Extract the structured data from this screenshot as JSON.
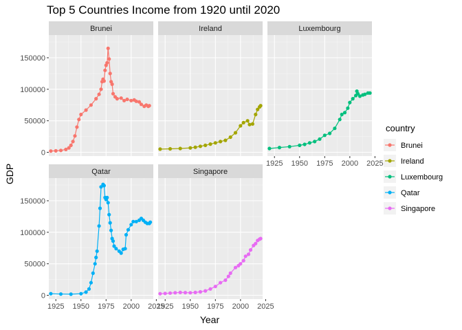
{
  "chart_data": {
    "type": "line",
    "title": "Top 5 Countries Income from 1920 until 2020",
    "xlabel": "Year",
    "ylabel": "GDP",
    "xlim": [
      1918,
      2022
    ],
    "ylim": [
      -6000,
      186000
    ],
    "x_ticks": [
      1925,
      1950,
      1975,
      2000,
      2025
    ],
    "y_ticks": [
      0,
      50000,
      100000,
      150000
    ],
    "y_tick_labels": [
      "0",
      "50000",
      "100000",
      "150000"
    ],
    "legend_title": "country",
    "legend_position": "right",
    "facets": [
      "Brunei",
      "Ireland",
      "Luxembourg",
      "Qatar",
      "Singapore"
    ],
    "series": [
      {
        "name": "Brunei",
        "color": "#F8766D",
        "points": [
          [
            1920,
            2000
          ],
          [
            1925,
            2300
          ],
          [
            1930,
            3000
          ],
          [
            1935,
            4500
          ],
          [
            1938,
            7000
          ],
          [
            1940,
            11000
          ],
          [
            1942,
            17000
          ],
          [
            1944,
            26000
          ],
          [
            1946,
            40000
          ],
          [
            1948,
            52000
          ],
          [
            1950,
            60000
          ],
          [
            1955,
            67000
          ],
          [
            1960,
            75000
          ],
          [
            1965,
            85000
          ],
          [
            1968,
            92000
          ],
          [
            1970,
            100000
          ],
          [
            1971,
            112000
          ],
          [
            1972,
            116000
          ],
          [
            1973,
            113000
          ],
          [
            1974,
            130000
          ],
          [
            1975,
            138000
          ],
          [
            1976,
            142000
          ],
          [
            1977,
            165000
          ],
          [
            1978,
            148000
          ],
          [
            1979,
            125000
          ],
          [
            1980,
            112000
          ],
          [
            1981,
            108000
          ],
          [
            1982,
            93000
          ],
          [
            1984,
            88000
          ],
          [
            1986,
            85000
          ],
          [
            1990,
            86000
          ],
          [
            1993,
            82000
          ],
          [
            1996,
            84000
          ],
          [
            2000,
            82000
          ],
          [
            2003,
            83000
          ],
          [
            2005,
            81000
          ],
          [
            2008,
            80000
          ],
          [
            2010,
            76000
          ],
          [
            2013,
            73000
          ],
          [
            2015,
            75000
          ],
          [
            2017,
            73000
          ],
          [
            2018,
            74000
          ]
        ]
      },
      {
        "name": "Ireland",
        "color": "#A3A500",
        "points": [
          [
            1920,
            5000
          ],
          [
            1930,
            5500
          ],
          [
            1940,
            6000
          ],
          [
            1950,
            7000
          ],
          [
            1955,
            8000
          ],
          [
            1960,
            9500
          ],
          [
            1965,
            11000
          ],
          [
            1970,
            13000
          ],
          [
            1975,
            15000
          ],
          [
            1980,
            17000
          ],
          [
            1985,
            19000
          ],
          [
            1990,
            24000
          ],
          [
            1995,
            31000
          ],
          [
            2000,
            42000
          ],
          [
            2003,
            47000
          ],
          [
            2007,
            50000
          ],
          [
            2009,
            44000
          ],
          [
            2012,
            45000
          ],
          [
            2015,
            60000
          ],
          [
            2017,
            68000
          ],
          [
            2019,
            72000
          ],
          [
            2020,
            74000
          ]
        ]
      },
      {
        "name": "Luxembourg",
        "color": "#00BF7D",
        "points": [
          [
            1920,
            6000
          ],
          [
            1930,
            7500
          ],
          [
            1940,
            9000
          ],
          [
            1950,
            11000
          ],
          [
            1955,
            12500
          ],
          [
            1960,
            15000
          ],
          [
            1965,
            17000
          ],
          [
            1970,
            21000
          ],
          [
            1975,
            27000
          ],
          [
            1980,
            30000
          ],
          [
            1985,
            38000
          ],
          [
            1990,
            52000
          ],
          [
            1992,
            60000
          ],
          [
            1995,
            63000
          ],
          [
            1998,
            70000
          ],
          [
            2000,
            79000
          ],
          [
            2003,
            85000
          ],
          [
            2006,
            90000
          ],
          [
            2007,
            97000
          ],
          [
            2008,
            93000
          ],
          [
            2010,
            89000
          ],
          [
            2013,
            91000
          ],
          [
            2015,
            92000
          ],
          [
            2018,
            94000
          ],
          [
            2020,
            94000
          ]
        ]
      },
      {
        "name": "Qatar",
        "color": "#00B0F6",
        "points": [
          [
            1920,
            2500
          ],
          [
            1930,
            2000
          ],
          [
            1940,
            1800
          ],
          [
            1950,
            2500
          ],
          [
            1955,
            5000
          ],
          [
            1958,
            10000
          ],
          [
            1960,
            20000
          ],
          [
            1962,
            35000
          ],
          [
            1964,
            50000
          ],
          [
            1965,
            60000
          ],
          [
            1966,
            70000
          ],
          [
            1968,
            110000
          ],
          [
            1969,
            138000
          ],
          [
            1970,
            172000
          ],
          [
            1972,
            176000
          ],
          [
            1973,
            174000
          ],
          [
            1974,
            155000
          ],
          [
            1975,
            152000
          ],
          [
            1976,
            155000
          ],
          [
            1977,
            147000
          ],
          [
            1978,
            128000
          ],
          [
            1979,
            115000
          ],
          [
            1980,
            103000
          ],
          [
            1981,
            90000
          ],
          [
            1982,
            86000
          ],
          [
            1983,
            78000
          ],
          [
            1985,
            74000
          ],
          [
            1988,
            70000
          ],
          [
            1990,
            67000
          ],
          [
            1992,
            73000
          ],
          [
            1994,
            74000
          ],
          [
            1995,
            96000
          ],
          [
            1997,
            104000
          ],
          [
            2000,
            112000
          ],
          [
            2002,
            117000
          ],
          [
            2005,
            117000
          ],
          [
            2008,
            119000
          ],
          [
            2010,
            122000
          ],
          [
            2012,
            119000
          ],
          [
            2014,
            116000
          ],
          [
            2016,
            114000
          ],
          [
            2018,
            114000
          ],
          [
            2019,
            116000
          ]
        ]
      },
      {
        "name": "Singapore",
        "color": "#E76BF3",
        "points": [
          [
            1920,
            2500
          ],
          [
            1925,
            3000
          ],
          [
            1930,
            3500
          ],
          [
            1935,
            4000
          ],
          [
            1940,
            4500
          ],
          [
            1945,
            4200
          ],
          [
            1950,
            4000
          ],
          [
            1955,
            4500
          ],
          [
            1960,
            5500
          ],
          [
            1965,
            7000
          ],
          [
            1970,
            10000
          ],
          [
            1975,
            14000
          ],
          [
            1980,
            20000
          ],
          [
            1985,
            24000
          ],
          [
            1988,
            30000
          ],
          [
            1990,
            35000
          ],
          [
            1995,
            44000
          ],
          [
            1998,
            47000
          ],
          [
            2000,
            50000
          ],
          [
            2003,
            55000
          ],
          [
            2005,
            62000
          ],
          [
            2008,
            65000
          ],
          [
            2010,
            72000
          ],
          [
            2013,
            79000
          ],
          [
            2015,
            82000
          ],
          [
            2017,
            87000
          ],
          [
            2019,
            89000
          ],
          [
            2020,
            90000
          ]
        ]
      }
    ]
  }
}
